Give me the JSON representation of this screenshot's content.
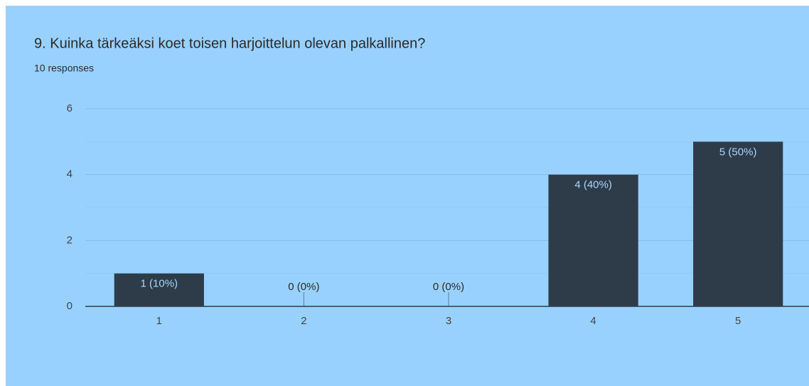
{
  "chart_data": {
    "type": "bar",
    "title": "9. Kuinka tärkeäksi koet toisen harjoittelun olevan palkallinen?",
    "subtitle": "10 responses",
    "categories": [
      "1",
      "2",
      "3",
      "4",
      "5"
    ],
    "values": [
      1,
      0,
      0,
      4,
      5
    ],
    "value_labels": [
      "1 (10%)",
      "0 (0%)",
      "0 (0%)",
      "4 (40%)",
      "5 (50%)"
    ],
    "color": "#2e3c4a",
    "ylim": [
      0,
      6
    ],
    "yticks": [
      0,
      2,
      4,
      6
    ],
    "minor_yticks": [
      1,
      3,
      5
    ],
    "grid": true
  }
}
